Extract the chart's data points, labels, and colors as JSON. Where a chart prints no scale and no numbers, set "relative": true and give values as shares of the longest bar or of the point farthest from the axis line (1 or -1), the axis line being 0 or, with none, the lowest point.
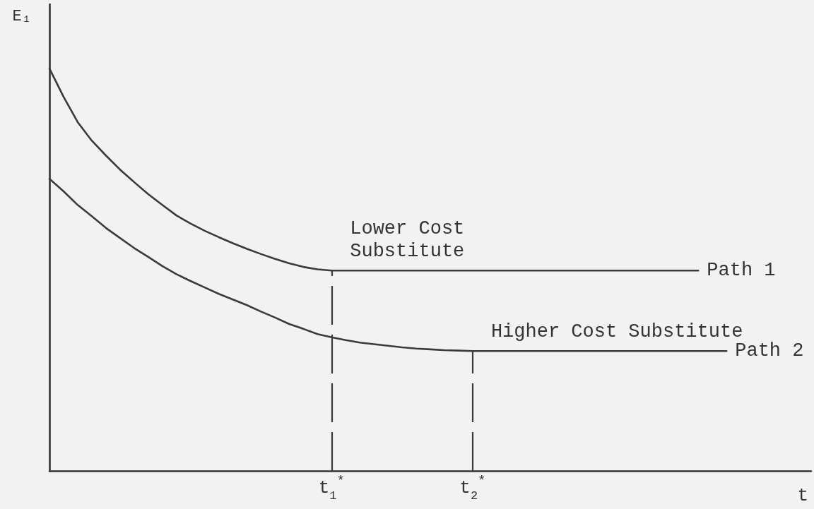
{
  "chart_data": {
    "type": "line",
    "relative": true,
    "xlabel": "t",
    "ylabel": "E₁",
    "tick_labels": "x",
    "marker": "none",
    "categories": [
      null,
      null,
      null,
      null,
      null,
      null,
      null,
      null,
      null,
      null,
      null,
      null,
      null,
      null,
      null,
      null,
      null,
      null,
      null,
      null,
      "t$_{1}$$^{*}$",
      null,
      null,
      null,
      null,
      null,
      null,
      null,
      null,
      null,
      "t$_{2}$$^{*}$",
      null,
      null,
      null,
      null,
      null,
      null,
      null,
      null,
      null,
      null,
      null,
      null,
      null,
      null,
      null,
      null,
      null,
      null,
      null,
      null,
      null,
      null,
      null,
      null
    ],
    "series": [
      {
        "name": "Path 1",
        "color": "#3a3a3a",
        "values": [
          1.0,
          0.93,
          0.867,
          0.821,
          0.784,
          0.749,
          0.718,
          0.688,
          0.661,
          0.635,
          0.615,
          0.597,
          0.581,
          0.566,
          0.552,
          0.539,
          0.527,
          0.516,
          0.507,
          0.501,
          0.498,
          0.498,
          0.498,
          0.498,
          0.498,
          0.498,
          0.498,
          0.498,
          0.498,
          0.498,
          0.498,
          0.498,
          0.498,
          0.498,
          0.498,
          0.498,
          0.498,
          0.498,
          0.498,
          0.498,
          0.498,
          0.498,
          0.498,
          0.498,
          0.498,
          0.498,
          0.498,
          null,
          null,
          null,
          null,
          null,
          null,
          null,
          null
        ]
      },
      {
        "name": "Path 2",
        "color": "#3a3a3a",
        "values": [
          0.726,
          0.695,
          0.661,
          0.633,
          0.604,
          0.579,
          0.554,
          0.532,
          0.509,
          0.489,
          0.472,
          0.456,
          0.44,
          0.426,
          0.412,
          0.396,
          0.381,
          0.365,
          0.353,
          0.34,
          0.332,
          0.325,
          0.319,
          0.315,
          0.311,
          0.307,
          0.304,
          0.302,
          0.3,
          0.299,
          0.298,
          0.298,
          0.298,
          0.298,
          0.298,
          0.298,
          0.298,
          0.298,
          0.298,
          0.298,
          0.298,
          0.298,
          0.298,
          0.298,
          0.298,
          0.298,
          0.298,
          0.298,
          0.298,
          null,
          null,
          null,
          null,
          null,
          null
        ]
      }
    ],
    "ref_lines": [
      {
        "axis": "x",
        "value": "t$_{1}$$^{*}$",
        "line_style": "dashed"
      },
      {
        "axis": "x",
        "value": "t$_{2}$$^{*}$",
        "line_style": "dashed"
      }
    ],
    "annotations": [
      {
        "text": "Lower Cost\nSubstitute",
        "x": "t$_{1}$$^{*}$",
        "y": 0.498
      },
      {
        "text": "Higher Cost Substitute",
        "x": "t$_{2}$$^{*}$",
        "y": 0.298
      }
    ]
  }
}
